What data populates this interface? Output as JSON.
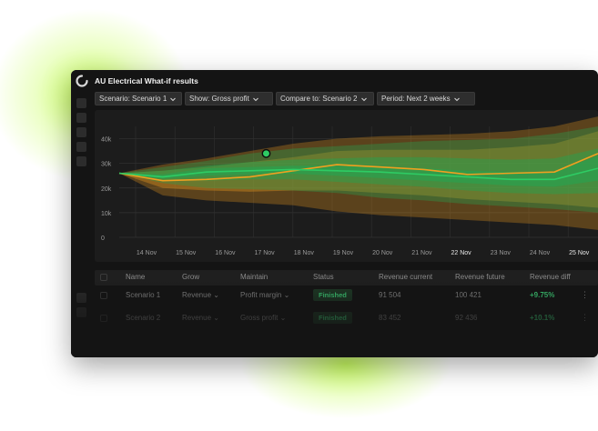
{
  "app": {
    "title": "AU Electrical What-if results"
  },
  "toolbar": {
    "scenario": "Scenario: Scenario 1",
    "show": "Show: Gross profit",
    "compare": "Compare to: Scenario 2",
    "period": "Period: Next 2 weeks"
  },
  "colors": {
    "window_bg": "#141414",
    "chart_bg": "#1c1c1c",
    "green_line": "#2ecc64",
    "orange_line": "#f0a020",
    "marker": "#2ecc64",
    "accent_positive": "#3ed57a"
  },
  "icons": {
    "logo": "app-logo-icon",
    "chevron": "chevron-down-icon",
    "more": "more-vertical-icon"
  },
  "chart_data": {
    "type": "area",
    "title": "",
    "xlabel": "",
    "ylabel": "",
    "categories": [
      "14 Nov",
      "15 Nov",
      "16 Nov",
      "17 Nov",
      "18 Nov",
      "19 Nov",
      "20 Nov",
      "21 Nov",
      "22 Nov",
      "23 Nov",
      "24 Nov",
      "25 Nov"
    ],
    "highlighted_ticks": [
      "22 Nov",
      "25 Nov"
    ],
    "yticks": [
      "0",
      "10k",
      "20k",
      "30k",
      "40k"
    ],
    "ylim": [
      0,
      45000
    ],
    "grid": true,
    "series": [
      {
        "color": "#2ecc64",
        "values": [
          26000,
          24500,
          26500,
          27000,
          27500,
          27000,
          26500,
          25500,
          24500,
          23500,
          23500,
          28000
        ],
        "bands": [
          {
            "lower": [
              26000,
              22000,
              20000,
              19500,
              19000,
              18000,
              16000,
              15000,
              13500,
              12500,
              11500,
              10000
            ],
            "upper": [
              26000,
              28500,
              31000,
              34000,
              36000,
              37000,
              38000,
              39000,
              39500,
              40000,
              42000,
              45000
            ]
          },
          {
            "lower": [
              26000,
              23000,
              23000,
              23500,
              23500,
              22500,
              21500,
              20500,
              19000,
              18000,
              17500,
              18000
            ],
            "upper": [
              26000,
              27000,
              29000,
              30500,
              31500,
              32000,
              32500,
              32500,
              32000,
              31500,
              32000,
              36000
            ]
          },
          {
            "lower": [
              26000,
              23800,
              25000,
              25500,
              25800,
              25000,
              24000,
              23000,
              22000,
              21000,
              20500,
              23000
            ],
            "upper": [
              26000,
              25500,
              28000,
              28500,
              29000,
              29000,
              28500,
              28000,
              27000,
              26500,
              26500,
              33000
            ]
          }
        ]
      },
      {
        "color": "#f0a020",
        "values": [
          26000,
          23000,
          23500,
          24500,
          27000,
          29500,
          28500,
          27500,
          25500,
          26000,
          26500,
          34000
        ],
        "bands": [
          {
            "lower": [
              26000,
              17000,
              15000,
              14000,
              13000,
              10500,
              9000,
              8000,
              7000,
              6000,
              5000,
              3000
            ],
            "upper": [
              26000,
              29500,
              32000,
              35000,
              38000,
              40000,
              41000,
              41500,
              42000,
              43000,
              45000,
              49000
            ]
          },
          {
            "lower": [
              26000,
              20000,
              19000,
              18500,
              19000,
              19000,
              18000,
              17000,
              15500,
              14500,
              13500,
              12000
            ],
            "upper": [
              26000,
              27000,
              28500,
              30500,
              32500,
              35000,
              35500,
              35500,
              35500,
              36500,
              38000,
              43000
            ]
          }
        ]
      }
    ],
    "marker": {
      "x": "17 Nov",
      "y": 34000
    }
  },
  "table": {
    "headers": [
      "Name",
      "Grow",
      "Maintain",
      "Status",
      "Revenue current",
      "Revenue future",
      "Revenue diff"
    ],
    "rows": [
      [
        "Scenario 1",
        "Revenue",
        "Profit margin",
        "Finished",
        "91 504",
        "100 421",
        "+9.75%"
      ],
      [
        "Scenario 2",
        "Revenue",
        "Gross profit",
        "Finished",
        "83 452",
        "92 436",
        "+10.1%"
      ]
    ]
  }
}
